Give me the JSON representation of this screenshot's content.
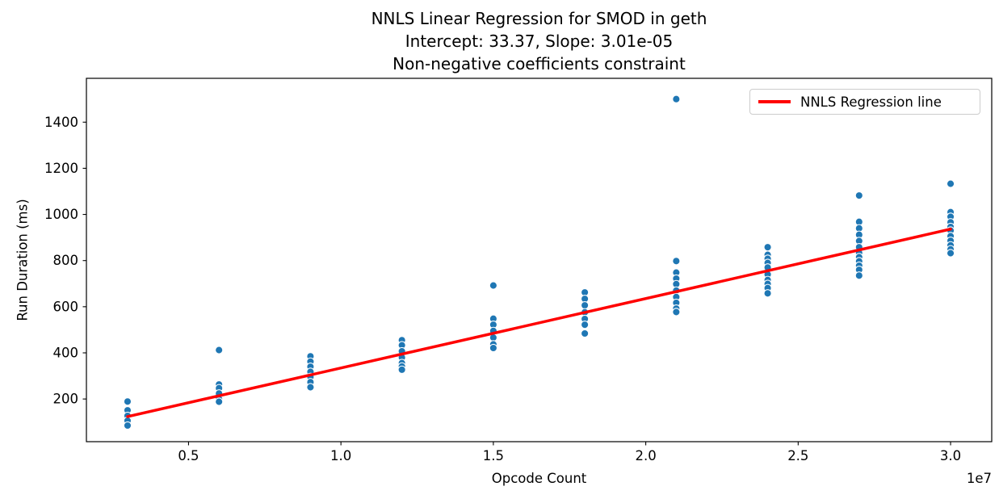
{
  "figure": {
    "title_lines": [
      "NNLS Linear Regression for SMOD in geth",
      "Intercept: 33.37, Slope: 3.01e-05",
      "Non-negative coefficients constraint"
    ]
  },
  "chart_data": {
    "type": "scatter",
    "title": "NNLS Linear Regression for SMOD in geth\nIntercept: 33.37, Slope: 3.01e-05\nNon-negative coefficients constraint",
    "xlabel": "Opcode Count",
    "ylabel": "Run Duration (ms)",
    "x_offset_text": "1e7",
    "grid": false,
    "xlim": [
      1650000,
      31350000
    ],
    "ylim": [
      15,
      1590
    ],
    "x_ticks": [
      5000000,
      10000000,
      15000000,
      20000000,
      25000000,
      30000000
    ],
    "x_tick_labels": [
      "0.5",
      "1.0",
      "1.5",
      "2.0",
      "2.5",
      "3.0"
    ],
    "y_ticks": [
      200,
      400,
      600,
      800,
      1000,
      1200,
      1400
    ],
    "y_tick_labels": [
      "200",
      "400",
      "600",
      "800",
      "1000",
      "1200",
      "1400"
    ],
    "legend": {
      "position": "upper right",
      "entries": [
        {
          "label": "NNLS Regression line",
          "color": "#ff0000",
          "type": "line"
        }
      ]
    },
    "colors": {
      "scatter": "#1f77b4",
      "scatter_edge": "#ffffff",
      "line": "#ff0000"
    },
    "series": [
      {
        "name": "runs",
        "type": "scatter",
        "points": [
          [
            3000000,
            189
          ],
          [
            3000000,
            151
          ],
          [
            3000000,
            127
          ],
          [
            3000000,
            106
          ],
          [
            3000000,
            85
          ],
          [
            6000000,
            412
          ],
          [
            6000000,
            263
          ],
          [
            6000000,
            247
          ],
          [
            6000000,
            224
          ],
          [
            6000000,
            200
          ],
          [
            6000000,
            188
          ],
          [
            9000000,
            385
          ],
          [
            9000000,
            362
          ],
          [
            9000000,
            340
          ],
          [
            9000000,
            318
          ],
          [
            9000000,
            296
          ],
          [
            9000000,
            273
          ],
          [
            9000000,
            251
          ],
          [
            12000000,
            455
          ],
          [
            12000000,
            433
          ],
          [
            12000000,
            407
          ],
          [
            12000000,
            380
          ],
          [
            12000000,
            356
          ],
          [
            12000000,
            341
          ],
          [
            12000000,
            327
          ],
          [
            15000000,
            692
          ],
          [
            15000000,
            548
          ],
          [
            15000000,
            522
          ],
          [
            15000000,
            495
          ],
          [
            15000000,
            466
          ],
          [
            15000000,
            437
          ],
          [
            15000000,
            421
          ],
          [
            18000000,
            662
          ],
          [
            18000000,
            634
          ],
          [
            18000000,
            606
          ],
          [
            18000000,
            576
          ],
          [
            18000000,
            547
          ],
          [
            18000000,
            522
          ],
          [
            18000000,
            484
          ],
          [
            21000000,
            1500
          ],
          [
            21000000,
            798
          ],
          [
            21000000,
            748
          ],
          [
            21000000,
            722
          ],
          [
            21000000,
            698
          ],
          [
            21000000,
            670
          ],
          [
            21000000,
            642
          ],
          [
            21000000,
            617
          ],
          [
            21000000,
            592
          ],
          [
            21000000,
            577
          ],
          [
            24000000,
            858
          ],
          [
            24000000,
            825
          ],
          [
            24000000,
            808
          ],
          [
            24000000,
            790
          ],
          [
            24000000,
            770
          ],
          [
            24000000,
            740
          ],
          [
            24000000,
            716
          ],
          [
            24000000,
            699
          ],
          [
            24000000,
            681
          ],
          [
            24000000,
            658
          ],
          [
            27000000,
            1082
          ],
          [
            27000000,
            968
          ],
          [
            27000000,
            940
          ],
          [
            27000000,
            912
          ],
          [
            27000000,
            885
          ],
          [
            27000000,
            858
          ],
          [
            27000000,
            833
          ],
          [
            27000000,
            815
          ],
          [
            27000000,
            797
          ],
          [
            27000000,
            778
          ],
          [
            27000000,
            760
          ],
          [
            27000000,
            735
          ],
          [
            30000000,
            1133
          ],
          [
            30000000,
            1010
          ],
          [
            30000000,
            990
          ],
          [
            30000000,
            966
          ],
          [
            30000000,
            946
          ],
          [
            30000000,
            930
          ],
          [
            30000000,
            906
          ],
          [
            30000000,
            886
          ],
          [
            30000000,
            866
          ],
          [
            30000000,
            849
          ],
          [
            30000000,
            832
          ]
        ]
      },
      {
        "name": "NNLS Regression line",
        "type": "line",
        "intercept": 33.37,
        "slope": 3.01e-05,
        "x_range": [
          3000000,
          30000000
        ]
      }
    ]
  }
}
